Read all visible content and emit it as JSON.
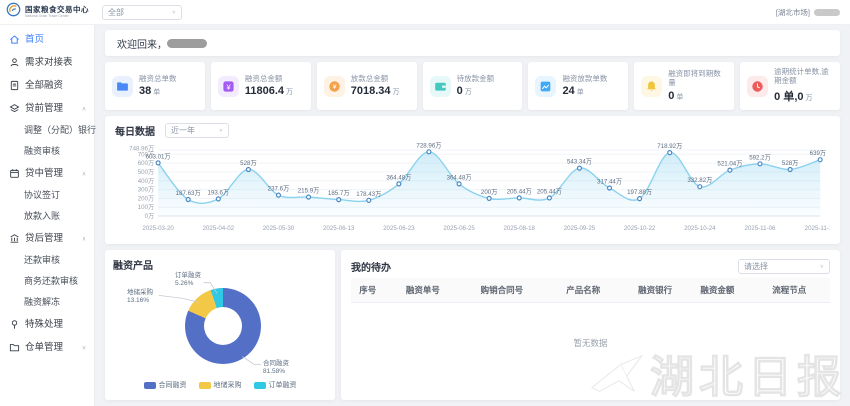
{
  "header": {
    "brand_cn": "国家粮食交易中心",
    "brand_en": "National Grain Trade Center",
    "market_select": "全部",
    "user_market": "[湖北市场]"
  },
  "sidebar": {
    "items": [
      {
        "label": "首页",
        "icon": "home-icon",
        "type": "item",
        "active": true
      },
      {
        "label": "需求对接表",
        "icon": "user-icon",
        "type": "item"
      },
      {
        "label": "全部融资",
        "icon": "document-icon",
        "type": "item"
      },
      {
        "label": "贷前管理",
        "icon": "layers-icon",
        "type": "group",
        "expanded": true
      },
      {
        "label": "调整（分配）银行",
        "type": "child"
      },
      {
        "label": "融资审核",
        "type": "child"
      },
      {
        "label": "贷中管理",
        "icon": "calendar-icon",
        "type": "group",
        "expanded": true
      },
      {
        "label": "协议签订",
        "type": "child"
      },
      {
        "label": "放款入账",
        "type": "child"
      },
      {
        "label": "贷后管理",
        "icon": "bank-icon",
        "type": "group",
        "expanded": true
      },
      {
        "label": "还款审核",
        "type": "child"
      },
      {
        "label": "商务还款审核",
        "type": "child"
      },
      {
        "label": "融资解冻",
        "type": "child"
      },
      {
        "label": "特殊处理",
        "icon": "pin-icon",
        "type": "item"
      },
      {
        "label": "仓单管理",
        "icon": "folder-icon",
        "type": "group",
        "expanded": false
      }
    ]
  },
  "welcome": {
    "greeting": "欢迎回来，"
  },
  "stats": {
    "cards": [
      {
        "title": "融资总单数",
        "value": "38",
        "unit": "单",
        "icon": "folder-icon",
        "color": "#4888f7",
        "bg": "#e9f1fe"
      },
      {
        "title": "融资总金额",
        "value": "11806.4",
        "unit": "万",
        "icon": "money-icon",
        "color": "#a45bf2",
        "bg": "#f3ebfe"
      },
      {
        "title": "放款总金额",
        "value": "7018.34",
        "unit": "万",
        "icon": "coin-icon",
        "color": "#f5a04a",
        "bg": "#fdf2e4"
      },
      {
        "title": "待放款金额",
        "value": "0",
        "unit": "万",
        "icon": "wallet-icon",
        "color": "#46c7c0",
        "bg": "#e6f8f7"
      },
      {
        "title": "融资放款单数",
        "value": "24",
        "unit": "单",
        "icon": "note-icon",
        "color": "#41a9f5",
        "bg": "#e8f4fe"
      },
      {
        "title": "融资即将到期数量",
        "value": "0",
        "unit": "单",
        "icon": "bell-icon",
        "color": "#f0c53a",
        "bg": "#fdf7e3"
      },
      {
        "title": "逾期统计单数,逾期金额",
        "value": "0 单,0",
        "unit": "万",
        "icon": "clock-icon",
        "color": "#ee5b5b",
        "bg": "#fdeaea"
      }
    ]
  },
  "chart_data": [
    {
      "type": "line",
      "title": "每日数据",
      "range_select": "近一年",
      "y_max": 748.96,
      "y_ticks": [
        {
          "v": 748.96,
          "label": "748.96万"
        },
        {
          "v": 700,
          "label": "700万"
        },
        {
          "v": 600,
          "label": "600万"
        },
        {
          "v": 500,
          "label": "500万"
        },
        {
          "v": 400,
          "label": "400万"
        },
        {
          "v": 300,
          "label": "300万"
        },
        {
          "v": 200,
          "label": "200万"
        },
        {
          "v": 100,
          "label": "100万"
        },
        {
          "v": 0,
          "label": "0万"
        }
      ],
      "x_ticks": [
        "2025-03-20",
        "2025-04-02",
        "2025-05-30",
        "2025-06-13",
        "2025-06-23",
        "2025-06-25",
        "2025-08-18",
        "2025-09-25",
        "2025-10-22",
        "2025-10-24",
        "2025-11-06",
        "2025-11-18"
      ],
      "values": [
        603.01,
        187.63,
        193.6,
        528,
        237.6,
        215.9,
        185.7,
        178.43,
        364.48,
        728.96,
        364.48,
        200,
        205.44,
        205.44,
        543.34,
        317.44,
        197.88,
        718.92,
        332.82,
        521.04,
        592.2,
        528,
        639
      ],
      "point_labels": [
        "603.01万",
        "187.63万",
        "193.6万",
        "528万",
        "237.6万",
        "215.9万",
        "185.7万",
        "178.43万",
        "364.48万",
        "728.96万",
        "364.48万",
        "200万",
        "205.44万",
        "205.44万",
        "543.34万",
        "317.44万",
        "197.88万",
        "718.92万",
        "332.82万",
        "521.04万",
        "592.2万",
        "528万",
        "639万"
      ],
      "line_color": "#8bd2ee",
      "dot_color": "#4a88c4"
    },
    {
      "type": "pie",
      "title": "融资产品",
      "slices": [
        {
          "name": "合同融资",
          "pct": 81.58,
          "label": "合同融资",
          "pct_label": "81.58%",
          "color": "#5470c6"
        },
        {
          "name": "地储采购",
          "pct": 13.16,
          "label": "地储采购",
          "pct_label": "13.16%",
          "color": "#f3c846"
        },
        {
          "name": "订单融资",
          "pct": 5.26,
          "label": "订单融资",
          "pct_label": "5.26%",
          "color": "#2fc8e5"
        }
      ],
      "legend": [
        "合同融资",
        "地储采购",
        "订单融资"
      ]
    }
  ],
  "todo": {
    "title": "我的待办",
    "filter_placeholder": "请选择",
    "columns": [
      "序号",
      "融资单号",
      "购销合同号",
      "产品名称",
      "融资银行",
      "融资金额",
      "流程节点"
    ],
    "empty_text": "暂无数据"
  },
  "watermark": {
    "text": "湖北日报"
  }
}
